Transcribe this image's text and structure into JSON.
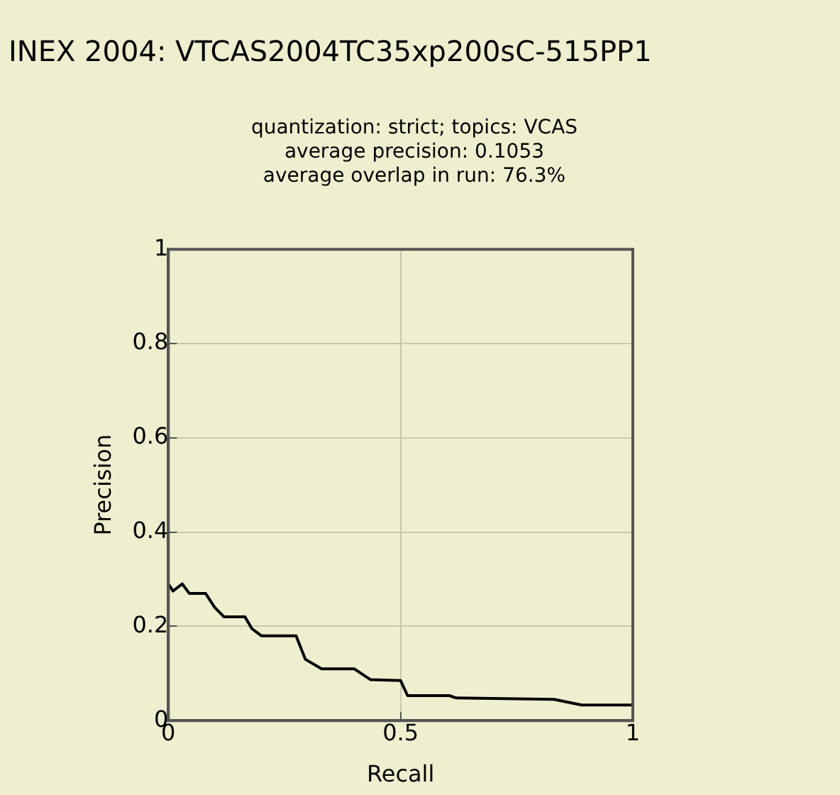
{
  "chart_data": {
    "type": "line",
    "title": "INEX 2004: VTCAS2004TC35xp200sC-515PP1",
    "subtitle": "quantization: strict; topics: VCAS\naverage precision: 0.1053\naverage overlap in run: 76.3%",
    "xlabel": "Recall",
    "ylabel": "Precision",
    "series": [
      {
        "color": "#000000",
        "x": [
          0,
          0.01,
          0.03,
          0.045,
          0.08,
          0.1,
          0.12,
          0.165,
          0.18,
          0.2,
          0.275,
          0.295,
          0.33,
          0.4,
          0.435,
          0.5,
          0.515,
          0.605,
          0.62,
          0.83,
          0.89,
          1
        ],
        "values": [
          0.29,
          0.275,
          0.29,
          0.27,
          0.27,
          0.24,
          0.22,
          0.22,
          0.195,
          0.18,
          0.18,
          0.13,
          0.11,
          0.11,
          0.087,
          0.085,
          0.053,
          0.053,
          0.048,
          0.045,
          0.033,
          0.033
        ]
      }
    ],
    "xlim": [
      0,
      1
    ],
    "ylim": [
      0,
      1
    ],
    "xticks": [
      0,
      {
        "value": 0.5,
        "label": "0.5"
      },
      1
    ],
    "yticks": [
      0,
      0.2,
      0.4,
      0.6,
      0.8,
      1
    ],
    "grid": true,
    "marker": "none",
    "line_style": "solid",
    "legend": false
  }
}
